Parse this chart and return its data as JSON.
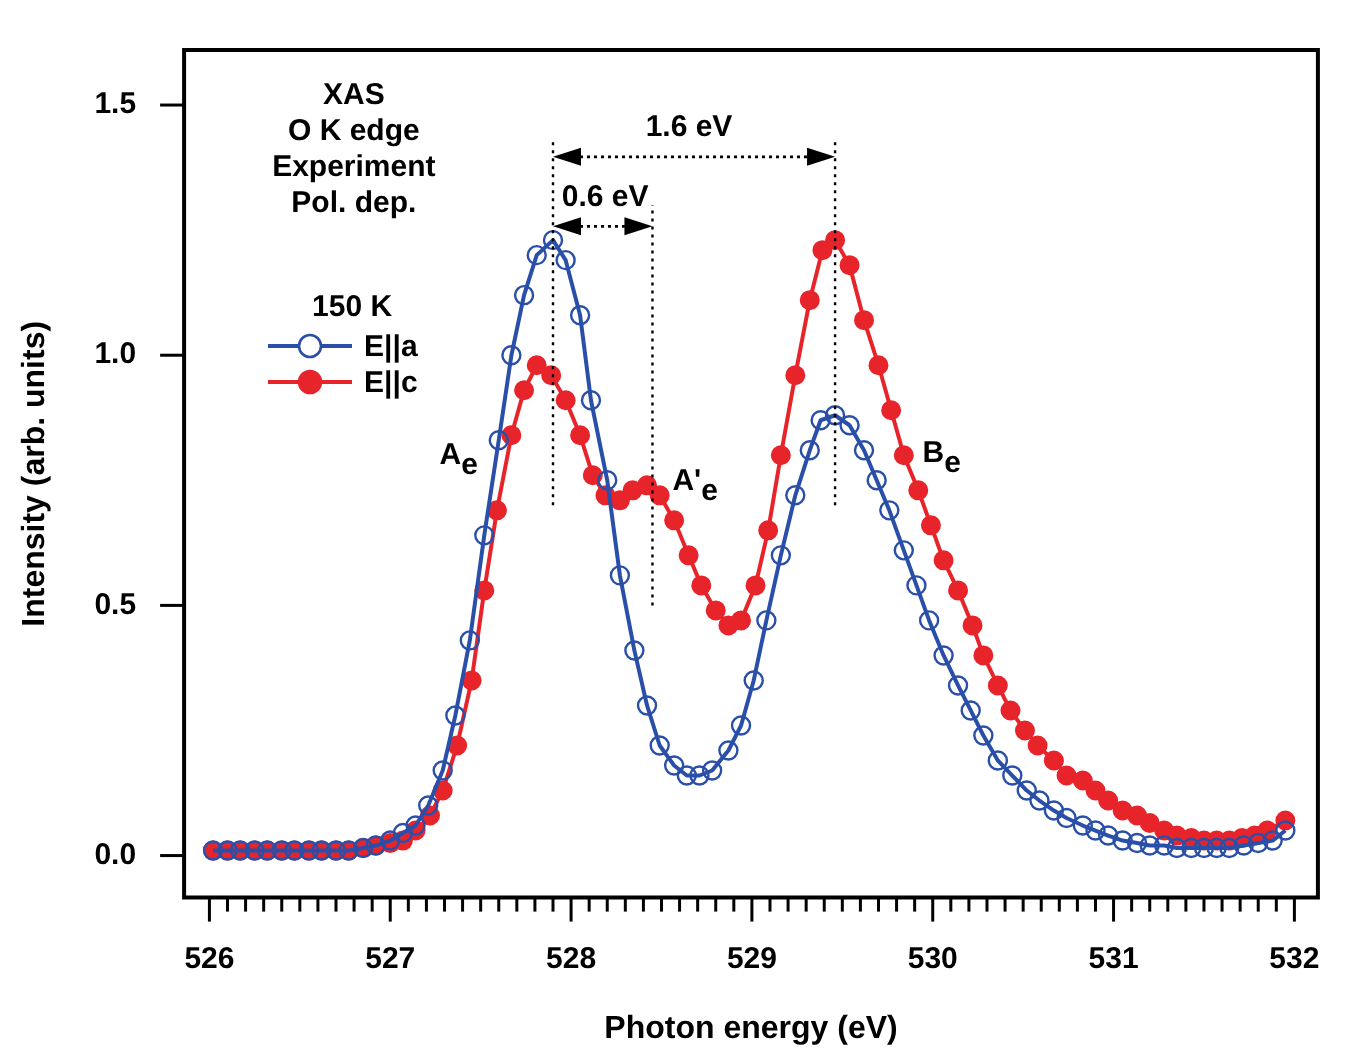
{
  "chart_data": {
    "type": "line",
    "xlabel": "Photon energy (eV)",
    "ylabel": "Intensity (arb. units)",
    "legend_title": "150 K",
    "legend": "top left",
    "marker": "circle",
    "line_style": "solid",
    "grid": false,
    "xlim": [
      525.86,
      532.13
    ],
    "ylim": [
      -0.084,
      1.61
    ],
    "xticks": [
      526,
      {
        "value": 526.1,
        "label": null
      },
      {
        "value": 526.2,
        "label": null
      },
      {
        "value": 526.3,
        "label": null
      },
      {
        "value": 526.4,
        "label": null
      },
      {
        "value": 526.5,
        "label": null
      },
      {
        "value": 526.6,
        "label": null
      },
      {
        "value": 526.7,
        "label": null
      },
      {
        "value": 526.8,
        "label": null
      },
      {
        "value": 526.9,
        "label": null
      },
      527,
      {
        "value": 527.1,
        "label": null
      },
      {
        "value": 527.2,
        "label": null
      },
      {
        "value": 527.3,
        "label": null
      },
      {
        "value": 527.4,
        "label": null
      },
      {
        "value": 527.5,
        "label": null
      },
      {
        "value": 527.6,
        "label": null
      },
      {
        "value": 527.7,
        "label": null
      },
      {
        "value": 527.8,
        "label": null
      },
      {
        "value": 527.9,
        "label": null
      },
      528,
      {
        "value": 528.1,
        "label": null
      },
      {
        "value": 528.2,
        "label": null
      },
      {
        "value": 528.3,
        "label": null
      },
      {
        "value": 528.4,
        "label": null
      },
      {
        "value": 528.5,
        "label": null
      },
      {
        "value": 528.6,
        "label": null
      },
      {
        "value": 528.7,
        "label": null
      },
      {
        "value": 528.8,
        "label": null
      },
      {
        "value": 528.9,
        "label": null
      },
      529,
      {
        "value": 529.1,
        "label": null
      },
      {
        "value": 529.2,
        "label": null
      },
      {
        "value": 529.3,
        "label": null
      },
      {
        "value": 529.4,
        "label": null
      },
      {
        "value": 529.5,
        "label": null
      },
      {
        "value": 529.6,
        "label": null
      },
      {
        "value": 529.7,
        "label": null
      },
      {
        "value": 529.8,
        "label": null
      },
      {
        "value": 529.9,
        "label": null
      },
      530,
      {
        "value": 530.1,
        "label": null
      },
      {
        "value": 530.2,
        "label": null
      },
      {
        "value": 530.3,
        "label": null
      },
      {
        "value": 530.4,
        "label": null
      },
      {
        "value": 530.5,
        "label": null
      },
      {
        "value": 530.6,
        "label": null
      },
      {
        "value": 530.7,
        "label": null
      },
      {
        "value": 530.8,
        "label": null
      },
      {
        "value": 530.9,
        "label": null
      },
      531,
      {
        "value": 531.1,
        "label": null
      },
      {
        "value": 531.2,
        "label": null
      },
      {
        "value": 531.3,
        "label": null
      },
      {
        "value": 531.4,
        "label": null
      },
      {
        "value": 531.5,
        "label": null
      },
      {
        "value": 531.6,
        "label": null
      },
      {
        "value": 531.7,
        "label": null
      },
      {
        "value": 531.8,
        "label": null
      },
      {
        "value": 531.9,
        "label": null
      },
      532
    ],
    "yticks": [
      {
        "value": 0,
        "label": "0.0"
      },
      {
        "value": 0.5,
        "label": "0.5"
      },
      {
        "value": 1,
        "label": "1.0"
      },
      {
        "value": 1.5,
        "label": "1.5"
      }
    ],
    "series": [
      {
        "name": "E||a",
        "color": "#2a4fa8",
        "x": [
          526.02,
          526.1,
          526.17,
          526.25,
          526.32,
          526.4,
          526.47,
          526.55,
          526.62,
          526.7,
          526.77,
          526.85,
          526.92,
          527.0,
          527.07,
          527.14,
          527.21,
          527.29,
          527.36,
          527.44,
          527.52,
          527.6,
          527.67,
          527.74,
          527.81,
          527.9,
          527.97,
          528.05,
          528.11,
          528.2,
          528.27,
          528.35,
          528.42,
          528.49,
          528.57,
          528.64,
          528.71,
          528.78,
          528.87,
          528.94,
          529.01,
          529.08,
          529.16,
          529.24,
          529.32,
          529.38,
          529.46,
          529.54,
          529.62,
          529.69,
          529.76,
          529.84,
          529.91,
          529.98,
          530.06,
          530.14,
          530.21,
          530.28,
          530.36,
          530.44,
          530.52,
          530.59,
          530.67,
          530.74,
          530.83,
          530.9,
          530.97,
          531.05,
          531.13,
          531.2,
          531.28,
          531.35,
          531.43,
          531.5,
          531.57,
          531.64,
          531.72,
          531.8,
          531.88,
          531.95
        ],
        "values": [
          0.01,
          0.01,
          0.01,
          0.01,
          0.01,
          0.01,
          0.01,
          0.01,
          0.01,
          0.01,
          0.01,
          0.015,
          0.02,
          0.03,
          0.045,
          0.06,
          0.1,
          0.17,
          0.28,
          0.43,
          0.64,
          0.83,
          1.0,
          1.12,
          1.2,
          1.23,
          1.19,
          1.08,
          0.91,
          0.75,
          0.56,
          0.41,
          0.3,
          0.22,
          0.18,
          0.16,
          0.16,
          0.17,
          0.21,
          0.26,
          0.35,
          0.47,
          0.6,
          0.72,
          0.81,
          0.87,
          0.88,
          0.86,
          0.81,
          0.75,
          0.69,
          0.61,
          0.54,
          0.47,
          0.4,
          0.34,
          0.29,
          0.24,
          0.19,
          0.16,
          0.13,
          0.11,
          0.09,
          0.075,
          0.06,
          0.05,
          0.04,
          0.03,
          0.025,
          0.02,
          0.02,
          0.015,
          0.015,
          0.015,
          0.015,
          0.015,
          0.02,
          0.025,
          0.03,
          0.05
        ]
      },
      {
        "name": "E||c",
        "color": "#e8242b",
        "x": [
          526.02,
          526.1,
          526.17,
          526.25,
          526.32,
          526.4,
          526.47,
          526.55,
          526.62,
          526.7,
          526.77,
          526.85,
          526.92,
          527.0,
          527.07,
          527.14,
          527.22,
          527.29,
          527.37,
          527.45,
          527.52,
          527.59,
          527.67,
          527.74,
          527.81,
          527.89,
          527.97,
          528.05,
          528.12,
          528.19,
          528.27,
          528.34,
          528.42,
          528.49,
          528.57,
          528.65,
          528.72,
          528.8,
          528.87,
          528.94,
          529.02,
          529.09,
          529.16,
          529.24,
          529.32,
          529.39,
          529.46,
          529.54,
          529.62,
          529.7,
          529.77,
          529.84,
          529.92,
          529.99,
          530.06,
          530.14,
          530.22,
          530.28,
          530.36,
          530.43,
          530.51,
          530.58,
          530.67,
          530.74,
          530.83,
          530.9,
          530.97,
          531.05,
          531.13,
          531.2,
          531.28,
          531.35,
          531.43,
          531.5,
          531.57,
          531.64,
          531.71,
          531.78,
          531.85,
          531.95
        ],
        "values": [
          0.01,
          0.01,
          0.01,
          0.01,
          0.01,
          0.01,
          0.01,
          0.01,
          0.01,
          0.01,
          0.01,
          0.015,
          0.02,
          0.025,
          0.03,
          0.05,
          0.08,
          0.13,
          0.22,
          0.35,
          0.53,
          0.69,
          0.84,
          0.93,
          0.98,
          0.96,
          0.91,
          0.84,
          0.76,
          0.72,
          0.71,
          0.73,
          0.74,
          0.72,
          0.67,
          0.6,
          0.54,
          0.49,
          0.46,
          0.47,
          0.54,
          0.65,
          0.8,
          0.96,
          1.11,
          1.21,
          1.23,
          1.18,
          1.07,
          0.98,
          0.89,
          0.8,
          0.73,
          0.66,
          0.59,
          0.53,
          0.46,
          0.4,
          0.34,
          0.29,
          0.25,
          0.22,
          0.19,
          0.16,
          0.15,
          0.13,
          0.11,
          0.09,
          0.08,
          0.065,
          0.05,
          0.04,
          0.035,
          0.03,
          0.03,
          0.03,
          0.035,
          0.04,
          0.05,
          0.07
        ]
      }
    ],
    "ref_lines": [
      {
        "axis": "x",
        "value": 527.9,
        "line_style": "dotted"
      },
      {
        "axis": "x",
        "value": 528.45,
        "line_style": "dotted"
      },
      {
        "axis": "x",
        "value": 529.46,
        "line_style": "dotted"
      }
    ],
    "annotations": [
      "XAS\nO K edge\nExperiment\nPol. dep.",
      "1.6 eV",
      "0.6 eV",
      "A$_{e}$",
      "A'$_{e}$",
      "B$_{e}$"
    ]
  }
}
